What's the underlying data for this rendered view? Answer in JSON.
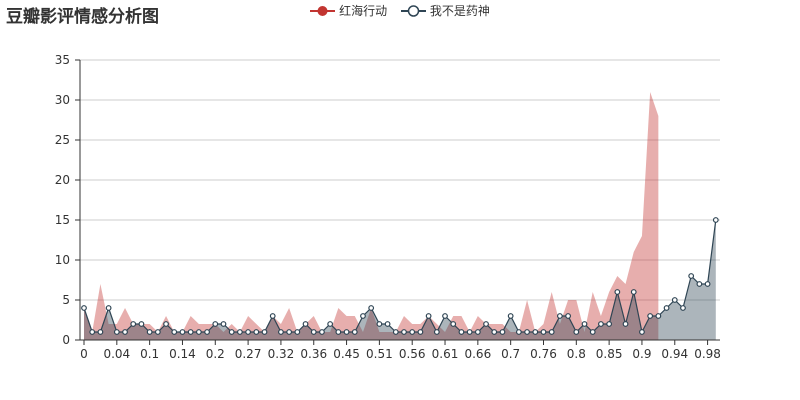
{
  "chart_data": {
    "type": "area",
    "title": "豆瓣影评情感分析图",
    "xlabel": "",
    "ylabel": "",
    "ylim": [
      0,
      35
    ],
    "yticks": [
      0,
      5,
      10,
      15,
      20,
      25,
      30,
      35
    ],
    "grid": "horizontal",
    "legend_position": "top-center",
    "x_tick_labels": [
      "0",
      "0.04",
      "0.1",
      "0.14",
      "0.2",
      "0.27",
      "0.32",
      "0.36",
      "0.45",
      "0.51",
      "0.56",
      "0.61",
      "0.66",
      "0.7",
      "0.76",
      "0.8",
      "0.85",
      "0.9",
      "0.94",
      "0.98"
    ],
    "x_tick_every": 4,
    "series": [
      {
        "name": "红海行动",
        "color": "#c23531",
        "marker": "hidden",
        "values": [
          4,
          1,
          7,
          2,
          2,
          4,
          2,
          2,
          2,
          1,
          3,
          1,
          1,
          3,
          2,
          2,
          2,
          1,
          2,
          1,
          3,
          2,
          1,
          3,
          2,
          4,
          1,
          2,
          3,
          1,
          1,
          4,
          3,
          3,
          1,
          4,
          1,
          1,
          1,
          3,
          2,
          2,
          3,
          2,
          1,
          3,
          3,
          1,
          3,
          2,
          2,
          2,
          1,
          1,
          5,
          1,
          2,
          6,
          2,
          5,
          5,
          1,
          6,
          3,
          6,
          8,
          7,
          11,
          13,
          31,
          28
        ]
      },
      {
        "name": "我不是药神",
        "color": "#2f4554",
        "marker": "hollow-circle",
        "values": [
          4,
          1,
          1,
          4,
          1,
          1,
          2,
          2,
          1,
          1,
          2,
          1,
          1,
          1,
          1,
          1,
          2,
          2,
          1,
          1,
          1,
          1,
          1,
          3,
          1,
          1,
          1,
          2,
          1,
          1,
          2,
          1,
          1,
          1,
          3,
          4,
          2,
          2,
          1,
          1,
          1,
          1,
          3,
          1,
          3,
          2,
          1,
          1,
          1,
          2,
          1,
          1,
          3,
          1,
          1,
          1,
          1,
          1,
          3,
          3,
          1,
          2,
          1,
          2,
          2,
          6,
          2,
          6,
          1,
          3,
          3,
          4,
          5,
          4,
          8,
          7,
          7,
          15
        ]
      }
    ]
  }
}
